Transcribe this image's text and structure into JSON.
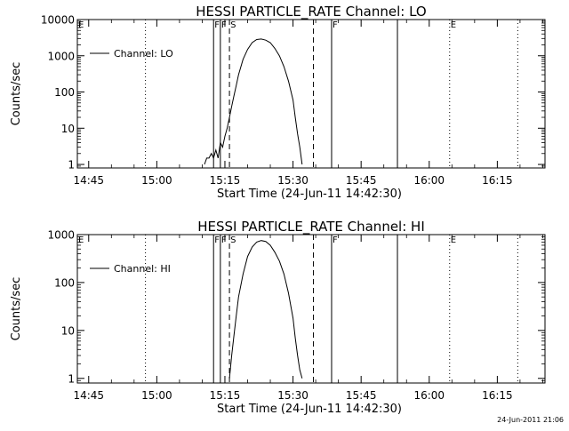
{
  "timestamp": "24-Jun-2011 21:06",
  "chart_data": [
    {
      "type": "line",
      "title": "HESSI PARTICLE_RATE Channel: LO",
      "xlabel": "Start Time (24-Jun-11 14:42:30)",
      "ylabel": "Counts/sec",
      "yscale": "log",
      "ylim": [
        0.8,
        10000
      ],
      "xlim": [
        "14:42:30",
        "16:25:30"
      ],
      "x_ticks": [
        "14:45",
        "15:00",
        "15:15",
        "15:30",
        "15:45",
        "16:00",
        "16:15"
      ],
      "y_ticks": [
        "1",
        "10",
        "100",
        "1000",
        "10000"
      ],
      "legend": {
        "position": "top-left",
        "entries": [
          "Channel: LO"
        ]
      },
      "grid": false,
      "series": [
        {
          "name": "Channel: LO",
          "x": [
            "15:10:30",
            "15:11:00",
            "15:11:30",
            "15:12:00",
            "15:12:30",
            "15:13:00",
            "15:13:30",
            "15:14:00",
            "15:14:30",
            "15:15:00",
            "15:15:30",
            "15:16:00",
            "15:16:30",
            "15:17:00",
            "15:17:30",
            "15:18:00",
            "15:19:00",
            "15:20:00",
            "15:21:00",
            "15:22:00",
            "15:23:00",
            "15:24:00",
            "15:25:00",
            "15:26:00",
            "15:27:00",
            "15:28:00",
            "15:29:00",
            "15:30:00",
            "15:30:30",
            "15:31:00",
            "15:31:30",
            "15:32:00"
          ],
          "values": [
            1,
            1.5,
            1.5,
            2,
            1.5,
            2.5,
            1.5,
            4,
            3,
            6,
            10,
            20,
            40,
            80,
            150,
            300,
            800,
            1500,
            2300,
            2800,
            2900,
            2700,
            2300,
            1600,
            1000,
            500,
            200,
            60,
            20,
            7,
            3,
            1
          ]
        }
      ],
      "markers": {
        "solid": [
          "15:12:30",
          "15:14:00",
          "15:38:30",
          "15:53:00"
        ],
        "dashed": [
          "15:16:00",
          "15:34:30"
        ],
        "dotted": [
          "14:57:30",
          "16:04:30",
          "16:19:30"
        ],
        "labels": [
          {
            "text": "E",
            "x": "14:42:30"
          },
          {
            "text": "F",
            "x": "15:12:30"
          },
          {
            "text": "F",
            "x": "15:14:00"
          },
          {
            "text": "S",
            "x": "15:16:00"
          },
          {
            "text": "F",
            "x": "15:38:30"
          },
          {
            "text": "E",
            "x": "16:04:30"
          }
        ]
      }
    },
    {
      "type": "line",
      "title": "HESSI PARTICLE_RATE Channel: HI",
      "xlabel": "Start Time (24-Jun-11 14:42:30)",
      "ylabel": "Counts/sec",
      "yscale": "log",
      "ylim": [
        0.8,
        1000
      ],
      "xlim": [
        "14:42:30",
        "16:25:30"
      ],
      "x_ticks": [
        "14:45",
        "15:00",
        "15:15",
        "15:30",
        "15:45",
        "16:00",
        "16:15"
      ],
      "y_ticks": [
        "1",
        "10",
        "100",
        "1000"
      ],
      "legend": {
        "position": "top-left",
        "entries": [
          "Channel: HI"
        ]
      },
      "grid": false,
      "series": [
        {
          "name": "Channel: HI",
          "x": [
            "15:16:00",
            "15:16:30",
            "15:17:00",
            "15:17:30",
            "15:18:00",
            "15:19:00",
            "15:20:00",
            "15:21:00",
            "15:22:00",
            "15:23:00",
            "15:24:00",
            "15:25:00",
            "15:26:00",
            "15:27:00",
            "15:28:00",
            "15:29:00",
            "15:30:00",
            "15:30:30",
            "15:31:00",
            "15:31:30",
            "15:32:00"
          ],
          "values": [
            1,
            3,
            8,
            20,
            50,
            150,
            350,
            550,
            700,
            750,
            720,
            600,
            430,
            280,
            150,
            60,
            18,
            7,
            3,
            1.5,
            1
          ]
        }
      ],
      "markers": {
        "solid": [
          "15:12:30",
          "15:14:00",
          "15:38:30",
          "15:53:00"
        ],
        "dashed": [
          "15:16:00",
          "15:34:30"
        ],
        "dotted": [
          "14:57:30",
          "16:04:30",
          "16:19:30"
        ],
        "labels": [
          {
            "text": "E",
            "x": "14:42:30"
          },
          {
            "text": "F",
            "x": "15:12:30"
          },
          {
            "text": "F",
            "x": "15:14:00"
          },
          {
            "text": "S",
            "x": "15:16:00"
          },
          {
            "text": "F",
            "x": "15:38:30"
          },
          {
            "text": "E",
            "x": "16:04:30"
          }
        ]
      }
    }
  ]
}
